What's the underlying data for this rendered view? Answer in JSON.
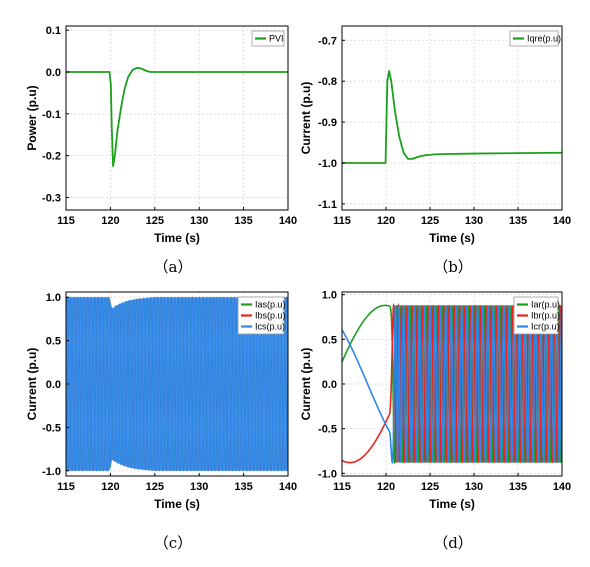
{
  "colors": {
    "green": "#1aa01a",
    "red": "#e8251c",
    "blue": "#2f86e6",
    "grid": "#d9d9d9"
  },
  "chart_data": [
    {
      "id": "a",
      "caption": "（a）",
      "type": "line",
      "xlabel": "Time (s)",
      "ylabel": "Power (p.u)",
      "xlim": [
        115,
        140
      ],
      "ylim": [
        -0.33,
        0.11
      ],
      "xticks": [
        115,
        120,
        125,
        130,
        135,
        140
      ],
      "xtick_labels": [
        "115",
        "120",
        "125",
        "130",
        "135",
        "140"
      ],
      "yticks": [
        0.1,
        0,
        -0.1,
        -0.2,
        -0.3
      ],
      "ytick_labels": [
        "0.1",
        "0.0",
        "-0.1",
        "-0.2",
        "-0.3"
      ],
      "grid": true,
      "legend_position": "top-right",
      "series": [
        {
          "name": "PVI",
          "color": "green",
          "x": [
            115,
            119.9,
            120.05,
            120.15,
            120.3,
            120.5,
            120.8,
            121.2,
            121.6,
            122.0,
            122.5,
            123.0,
            123.5,
            124.0,
            124.5,
            125,
            127,
            140
          ],
          "y": [
            0,
            0,
            -0.03,
            -0.13,
            -0.225,
            -0.2,
            -0.14,
            -0.085,
            -0.04,
            -0.012,
            0.005,
            0.01,
            0.008,
            0.003,
            0.0,
            0,
            0,
            0
          ]
        }
      ]
    },
    {
      "id": "b",
      "caption": "（b）",
      "type": "line",
      "xlabel": "Time (s)",
      "ylabel": "Current (p.u)",
      "xlim": [
        115,
        140
      ],
      "ylim": [
        -1.115,
        -0.665
      ],
      "xticks": [
        115,
        120,
        125,
        130,
        135,
        140
      ],
      "xtick_labels": [
        "115",
        "120",
        "125",
        "130",
        "135",
        "140"
      ],
      "yticks": [
        -0.7,
        -0.8,
        -0.9,
        -1.0,
        -1.1
      ],
      "ytick_labels": [
        "-0.7",
        "-0.8",
        "-0.9",
        "-1.0",
        "-1.1"
      ],
      "grid": true,
      "legend_position": "top-right",
      "series": [
        {
          "name": "Iqre(p.u)",
          "color": "green",
          "x": [
            115,
            119.95,
            120.0,
            120.15,
            120.35,
            120.6,
            121.0,
            121.5,
            122.0,
            122.5,
            123.0,
            123.5,
            124.0,
            124.5,
            125.5,
            127,
            130,
            135,
            140
          ],
          "y": [
            -1.0,
            -1.0,
            -0.95,
            -0.8,
            -0.775,
            -0.8,
            -0.87,
            -0.935,
            -0.975,
            -0.99,
            -0.99,
            -0.986,
            -0.983,
            -0.981,
            -0.979,
            -0.978,
            -0.977,
            -0.976,
            -0.975
          ]
        }
      ]
    },
    {
      "id": "c",
      "caption": "（c）",
      "type": "line",
      "xlabel": "Time (s)",
      "ylabel": "Current (p.u)",
      "xlim": [
        115,
        140
      ],
      "ylim": [
        -1.06,
        1.06
      ],
      "xticks": [
        115,
        120,
        125,
        130,
        135,
        140
      ],
      "xtick_labels": [
        "115",
        "120",
        "125",
        "130",
        "135",
        "140"
      ],
      "yticks": [
        1.0,
        0.5,
        0,
        -0.5,
        -1.0
      ],
      "ytick_labels": [
        "1.0",
        "0.5",
        "0.0",
        "-0.5",
        "-1.0"
      ],
      "grid": true,
      "legend_position": "top-right",
      "envelope": {
        "x": [
          115,
          119.9,
          120.2,
          120.6,
          121.2,
          122.0,
          123.0,
          124.0,
          125.0,
          126.0,
          130,
          140
        ],
        "y": [
          1.0,
          1.0,
          0.87,
          0.9,
          0.93,
          0.96,
          0.98,
          0.99,
          1.0,
          1.0,
          1.0,
          1.0
        ]
      },
      "series": [
        {
          "name": "Ias(p.u)",
          "color": "green"
        },
        {
          "name": "Ibs(p.u)",
          "color": "red"
        },
        {
          "name": "Ics(p.u)",
          "color": "blue"
        }
      ]
    },
    {
      "id": "d",
      "caption": "（d）",
      "type": "line",
      "xlabel": "Time (s)",
      "ylabel": "Current (p.u)",
      "xlim": [
        115,
        140
      ],
      "ylim": [
        -1.03,
        1.03
      ],
      "xticks": [
        115,
        120,
        125,
        130,
        135,
        140
      ],
      "xtick_labels": [
        "115",
        "120",
        "125",
        "130",
        "135",
        "140"
      ],
      "yticks": [
        1.0,
        0.5,
        0,
        -0.5,
        -1.0
      ],
      "ytick_labels": [
        "1.0",
        "0.5",
        "0.0",
        "-0.5",
        "-1.0"
      ],
      "grid": true,
      "legend_position": "top-right",
      "slip_period_s_before": 24,
      "slip_period_s_after": 0.6,
      "transition_time_s": 120.4,
      "amplitude_after": 0.88,
      "series": [
        {
          "name": "Iar(p.u)",
          "color": "green",
          "phase_deg": 0
        },
        {
          "name": "Ibr(p.u)",
          "color": "red",
          "phase_deg": -120
        },
        {
          "name": "Icr(p.u)",
          "color": "blue",
          "phase_deg": 120
        }
      ]
    }
  ]
}
